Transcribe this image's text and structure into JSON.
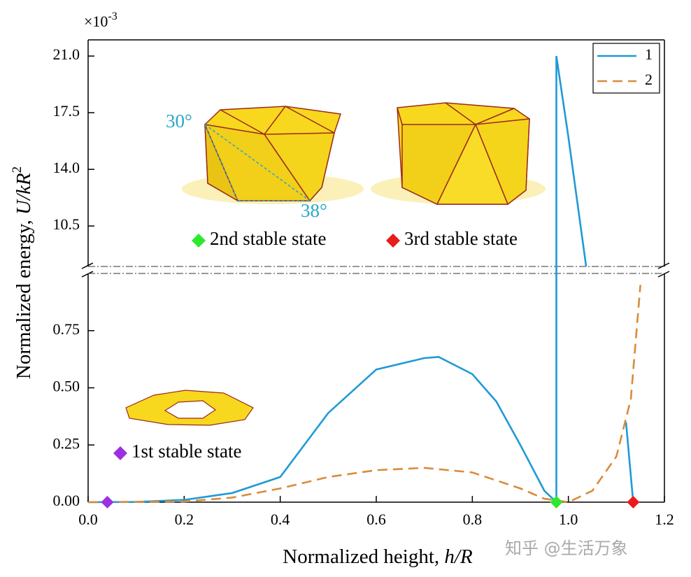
{
  "chart_data": {
    "type": "line",
    "y_multiplier": {
      "base": "×10",
      "exponent": "-3"
    },
    "xlabel": {
      "text": "Normalized height, ",
      "symbol": "h/R"
    },
    "ylabel": {
      "text": "Normalized energy, ",
      "symbol": "U/kR",
      "sup": "2"
    },
    "xlim": [
      0,
      1.2
    ],
    "xticks": [
      {
        "value": 0,
        "label": "0.0"
      },
      {
        "value": 0.2,
        "label": "0.2"
      },
      {
        "value": 0.4,
        "label": "0.4"
      },
      {
        "value": 0.6,
        "label": "0.6"
      },
      {
        "value": 0.8,
        "label": "0.8"
      },
      {
        "value": 1.0,
        "label": "1.0"
      },
      {
        "value": 1.2,
        "label": "1.2"
      }
    ],
    "ylim": [
      0,
      22
    ],
    "ybreak": [
      1,
      8
    ],
    "yticks": [
      {
        "value": 0,
        "label": "0.00"
      },
      {
        "value": 0.25,
        "label": "0.25"
      },
      {
        "value": 0.5,
        "label": "0.50"
      },
      {
        "value": 0.75,
        "label": "0.75"
      },
      10.5,
      {
        "value": 14,
        "label": "14.0"
      },
      {
        "value": 17.5,
        "label": "17.5"
      },
      {
        "value": 21,
        "label": "21.0"
      }
    ],
    "series": [
      {
        "name": "1",
        "color": "#1f9ad6",
        "style": "solid",
        "x": [
          0,
          0.1,
          0.2,
          0.3,
          0.4,
          0.5,
          0.6,
          0.7,
          0.73,
          0.8,
          0.85,
          0.9,
          0.95,
          0.975,
          0.975,
          1.0,
          1.037,
          1.1,
          1.12,
          1.135
        ],
        "values": [
          0,
          0.001,
          0.01,
          0.04,
          0.11,
          0.39,
          0.58,
          0.63,
          0.635,
          0.56,
          0.44,
          0.25,
          0.05,
          0,
          21,
          16,
          8,
          null,
          0.35,
          0
        ]
      },
      {
        "name": "2",
        "color": "#d98b3a",
        "style": "dashed",
        "x": [
          0,
          0.2,
          0.3,
          0.4,
          0.5,
          0.6,
          0.7,
          0.8,
          0.9,
          0.95,
          1.0,
          1.05,
          1.1,
          1.13,
          1.15
        ],
        "values": [
          0,
          0.003,
          0.02,
          0.06,
          0.11,
          0.14,
          0.15,
          0.13,
          0.06,
          0.015,
          0,
          0.05,
          0.2,
          0.45,
          0.95
        ]
      }
    ],
    "states": [
      {
        "label": "1st stable state",
        "x": 0.04,
        "value": 0,
        "color": "#9b30e0"
      },
      {
        "label": "2nd stable state",
        "x": 0.975,
        "value": 0,
        "color": "#2ee82e"
      },
      {
        "label": "3rd stable state",
        "x": 1.135,
        "value": 0,
        "color": "#e81c1c"
      }
    ],
    "annotations": [
      "30°",
      "38°"
    ],
    "legend": "top-right",
    "watermark": "知乎 @生活万象"
  }
}
